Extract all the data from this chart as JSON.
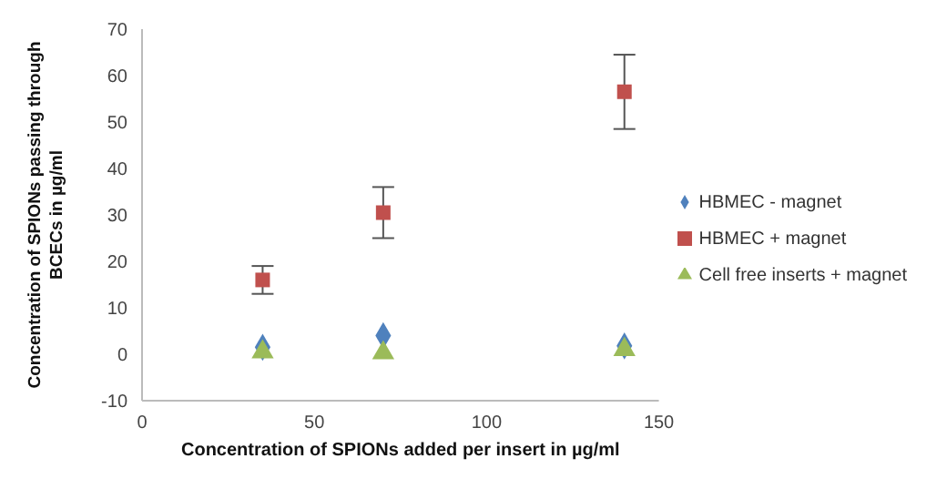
{
  "chart_data": {
    "type": "scatter",
    "xlabel": "Concentration of SPIONs added per insert in µg/ml",
    "ylabel": "Concentration of SPIONs passing through BCECs in µg/ml",
    "x": [
      35,
      70,
      140
    ],
    "series": [
      {
        "name": "HBMEC - magnet",
        "color": "#4f81bd",
        "marker": "diamond",
        "values": [
          1.5,
          4,
          1.8
        ]
      },
      {
        "name": "HBMEC + magnet",
        "color": "#c0504d",
        "marker": "square",
        "values": [
          16,
          30.5,
          56.5
        ],
        "errors": [
          3,
          5.5,
          8
        ]
      },
      {
        "name": "Cell free inserts + magnet",
        "color": "#9bbb59",
        "marker": "triangle",
        "values": [
          0.5,
          0.3,
          1
        ]
      }
    ],
    "xlim": [
      0,
      150
    ],
    "xticks": [
      0,
      50,
      100,
      150
    ],
    "ylim": [
      -10,
      70
    ],
    "yticks": [
      -10,
      0,
      10,
      20,
      30,
      40,
      50,
      60,
      70
    ],
    "legend": "right"
  }
}
